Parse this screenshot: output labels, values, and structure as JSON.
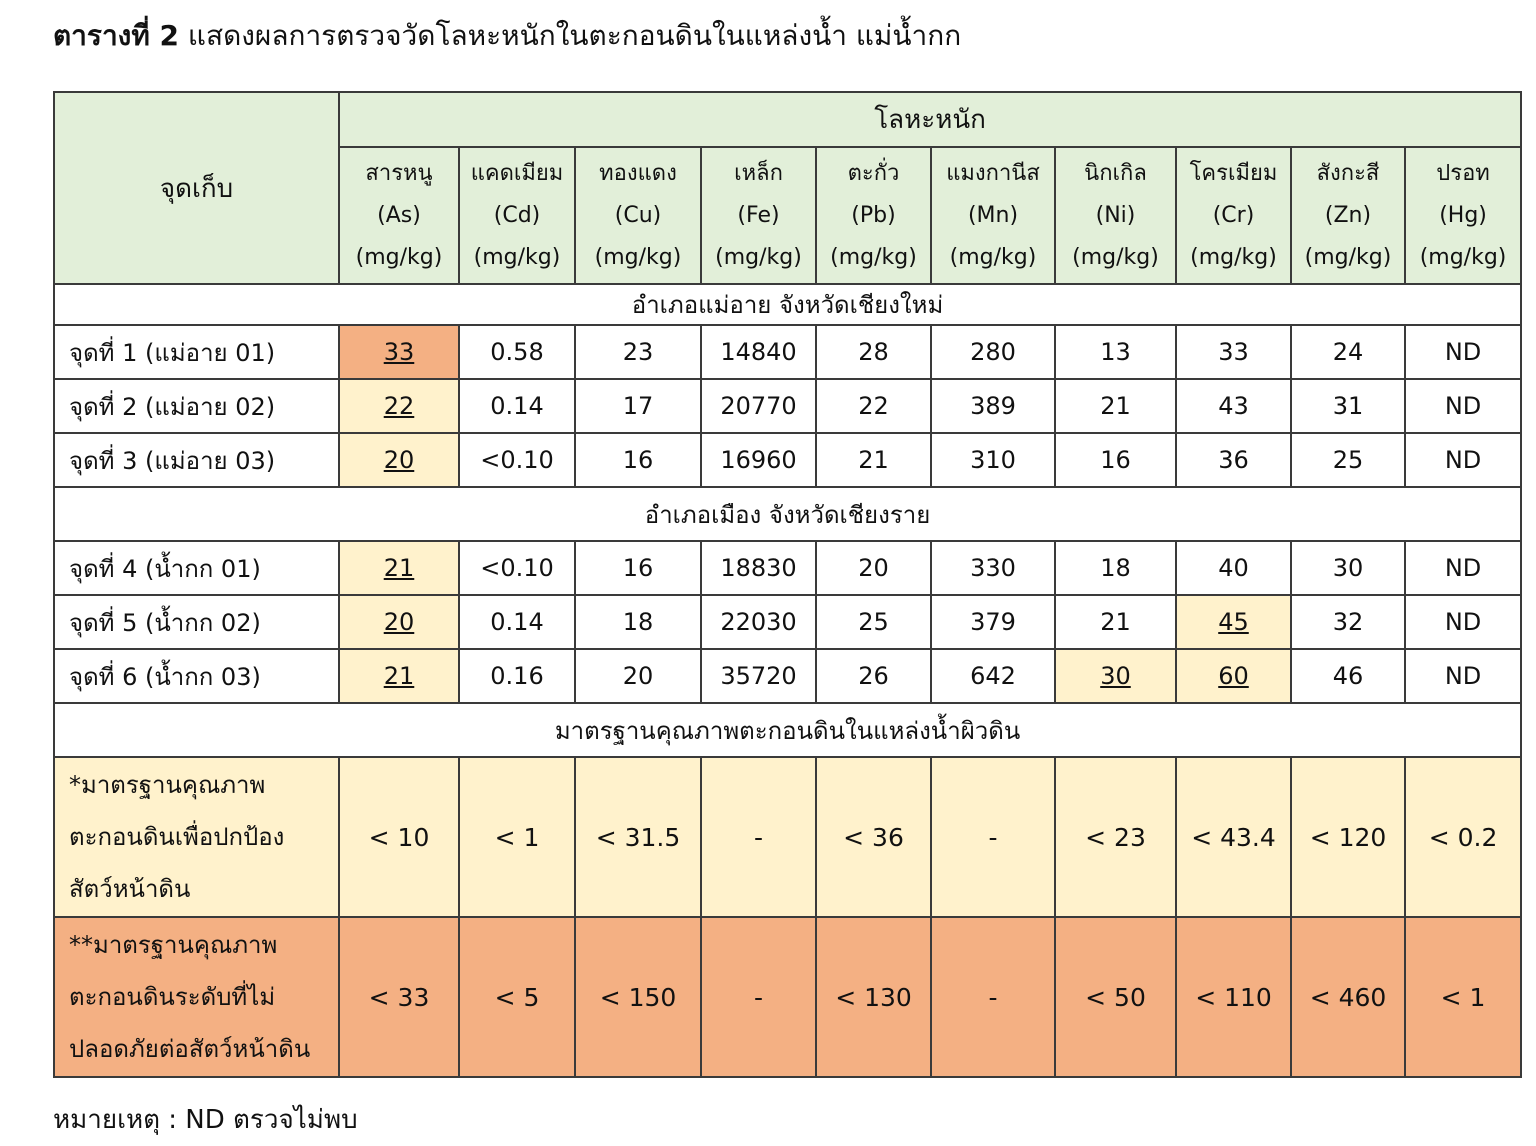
{
  "caption": {
    "lead": "ตารางที่ 2",
    "text": " แสดงผลการตรวจวัดโลหะหนักในตะกอนดินในแหล่งน้ำ แม่น้ำกก"
  },
  "table": {
    "group_header": "โลหะหนัก",
    "location_header": "จุดเก็บ",
    "metals": [
      {
        "name": "สารหนู",
        "symbol": "(As)",
        "unit": "(mg/kg)"
      },
      {
        "name": "แคดเมียม",
        "symbol": "(Cd)",
        "unit": "(mg/kg)"
      },
      {
        "name": "ทองแดง",
        "symbol": "(Cu)",
        "unit": "(mg/kg)"
      },
      {
        "name": "เหล็ก",
        "symbol": "(Fe)",
        "unit": "(mg/kg)"
      },
      {
        "name": "ตะกั่ว",
        "symbol": "(Pb)",
        "unit": "(mg/kg)"
      },
      {
        "name": "แมงกานีส",
        "symbol": "(Mn)",
        "unit": "(mg/kg)"
      },
      {
        "name": "นิกเกิล",
        "symbol": "(Ni)",
        "unit": "(mg/kg)"
      },
      {
        "name": "โครเมียม",
        "symbol": "(Cr)",
        "unit": "(mg/kg)"
      },
      {
        "name": "สังกะสี",
        "symbol": "(Zn)",
        "unit": "(mg/kg)"
      },
      {
        "name": "ปรอท",
        "symbol": "(Hg)",
        "unit": "(mg/kg)"
      }
    ],
    "sections": [
      {
        "title": "อำเภอแม่อาย จังหวัดเชียงใหม่",
        "rows": [
          {
            "label": "จุดที่ 1 (แม่อาย 01)",
            "values": [
              "33",
              "0.58",
              "23",
              "14840",
              "28",
              "280",
              "13",
              "33",
              "24",
              "ND"
            ]
          },
          {
            "label": "จุดที่ 2 (แม่อาย 02)",
            "values": [
              "22",
              "0.14",
              "17",
              "20770",
              "22",
              "389",
              "21",
              "43",
              "31",
              "ND"
            ]
          },
          {
            "label": "จุดที่ 3 (แม่อาย 03)",
            "values": [
              "20",
              "<0.10",
              "16",
              "16960",
              "21",
              "310",
              "16",
              "36",
              "25",
              "ND"
            ]
          }
        ]
      },
      {
        "title": "อำเภอเมือง จังหวัดเชียงราย",
        "rows": [
          {
            "label": "จุดที่ 4 (น้ำกก 01)",
            "values": [
              "21",
              "<0.10",
              "16",
              "18830",
              "20",
              "330",
              "18",
              "40",
              "30",
              "ND"
            ]
          },
          {
            "label": "จุดที่ 5 (น้ำกก 02)",
            "values": [
              "20",
              "0.14",
              "18",
              "22030",
              "25",
              "379",
              "21",
              "45",
              "32",
              "ND"
            ]
          },
          {
            "label": "จุดที่ 6 (น้ำกก 03)",
            "values": [
              "21",
              "0.16",
              "20",
              "35720",
              "26",
              "642",
              "30",
              "60",
              "46",
              "ND"
            ]
          }
        ]
      }
    ],
    "standards_title": "มาตรฐานคุณภาพตะกอนดินในแหล่งน้ำผิวดิน",
    "standards": [
      {
        "label_lines": [
          "*มาตรฐานคุณภาพ",
          "ตะกอนดินเพื่อปกป้อง",
          "สัตว์หน้าดิน"
        ],
        "values": [
          "< 10",
          "< 1",
          "< 31.5",
          "-",
          "< 36",
          "-",
          "< 23",
          "< 43.4",
          "< 120",
          "< 0.2"
        ]
      },
      {
        "label_lines": [
          "**มาตรฐานคุณภาพ",
          "ตะกอนดินระดับที่ไม่",
          "ปลอดภัยต่อสัตว์หน้าดิน"
        ],
        "values": [
          "< 33",
          "< 5",
          "< 150",
          "-",
          "< 130",
          "-",
          "< 50",
          "< 110",
          "< 460",
          "< 1"
        ]
      }
    ]
  },
  "colors": {
    "header_green": "#e2efd9",
    "exceed_pale": "#fff2cc",
    "exceed_orange": "#f4b083"
  },
  "note": "หมายเหตุ : ND ตรวจไม่พบ"
}
